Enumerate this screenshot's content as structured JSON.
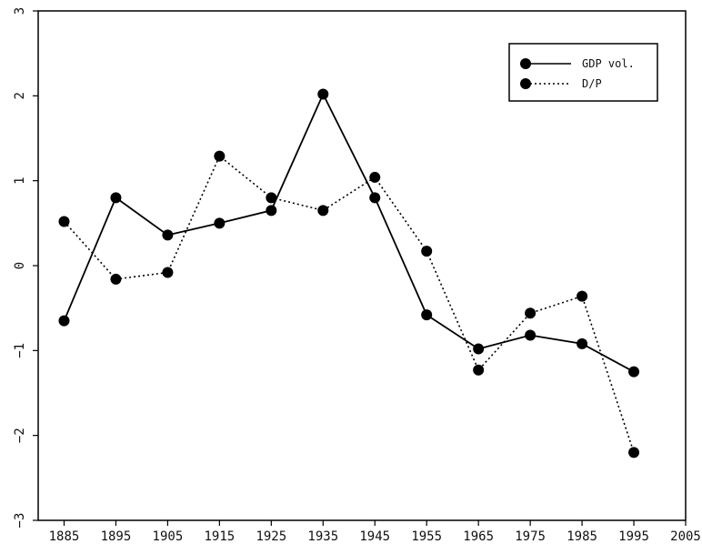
{
  "chart_data": {
    "type": "line",
    "title": "",
    "xlabel": "",
    "ylabel": "",
    "x": [
      1885,
      1895,
      1905,
      1915,
      1925,
      1935,
      1945,
      1955,
      1965,
      1975,
      1985,
      1995
    ],
    "xlim": [
      1880,
      2005
    ],
    "ylim": [
      -3,
      3
    ],
    "xticks": [
      1885,
      1895,
      1905,
      1915,
      1925,
      1935,
      1945,
      1955,
      1965,
      1975,
      1985,
      1995,
      2005
    ],
    "yticks": [
      -3,
      -2,
      -1,
      0,
      1,
      2,
      3
    ],
    "grid": false,
    "legend_position": "top-right",
    "series": [
      {
        "name": "GDP vol.",
        "line_style": "solid",
        "marker": "filled-circle",
        "color": "#000000",
        "values": [
          -0.65,
          0.8,
          0.36,
          0.5,
          0.65,
          2.02,
          0.8,
          -0.58,
          -0.98,
          -0.82,
          -0.92,
          -1.25
        ]
      },
      {
        "name": "D/P",
        "line_style": "dotted",
        "marker": "filled-circle",
        "color": "#000000",
        "values": [
          0.52,
          -0.16,
          -0.08,
          1.29,
          0.8,
          0.65,
          1.04,
          0.17,
          -1.23,
          -0.56,
          -0.36,
          -2.2
        ]
      }
    ]
  }
}
